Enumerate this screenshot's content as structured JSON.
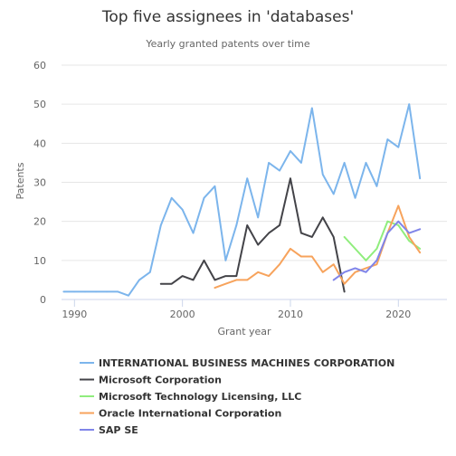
{
  "chart_data": {
    "type": "line",
    "title": "Top five assignees in 'databases'",
    "subtitle": "Yearly granted patents over time",
    "xlabel": "Grant year",
    "ylabel": "Patents",
    "xlim": [
      1988.8,
      2024.5
    ],
    "ylim": [
      0,
      60
    ],
    "x_ticks": [
      1990,
      2000,
      2010,
      2020
    ],
    "y_ticks": [
      0,
      10,
      20,
      30,
      40,
      50,
      60
    ],
    "grid": "horizontal",
    "legend_position": "bottom",
    "series": [
      {
        "name": "INTERNATIONAL BUSINESS MACHINES CORPORATION",
        "color": "#7cb5ec",
        "points": [
          [
            1989,
            2
          ],
          [
            1990,
            2
          ],
          [
            1991,
            2
          ],
          [
            1992,
            2
          ],
          [
            1993,
            2
          ],
          [
            1994,
            2
          ],
          [
            1995,
            1
          ],
          [
            1996,
            5
          ],
          [
            1997,
            7
          ],
          [
            1998,
            19
          ],
          [
            1999,
            26
          ],
          [
            2000,
            23
          ],
          [
            2001,
            17
          ],
          [
            2002,
            26
          ],
          [
            2003,
            29
          ],
          [
            2004,
            10
          ],
          [
            2005,
            19
          ],
          [
            2006,
            31
          ],
          [
            2007,
            21
          ],
          [
            2008,
            35
          ],
          [
            2009,
            33
          ],
          [
            2010,
            38
          ],
          [
            2011,
            35
          ],
          [
            2012,
            49
          ],
          [
            2013,
            32
          ],
          [
            2014,
            27
          ],
          [
            2015,
            35
          ],
          [
            2016,
            26
          ],
          [
            2017,
            35
          ],
          [
            2018,
            29
          ],
          [
            2019,
            41
          ],
          [
            2020,
            39
          ],
          [
            2021,
            50
          ],
          [
            2022,
            31
          ]
        ]
      },
      {
        "name": "Microsoft Corporation",
        "color": "#434348",
        "points": [
          [
            1998,
            4
          ],
          [
            1999,
            4
          ],
          [
            2000,
            6
          ],
          [
            2001,
            5
          ],
          [
            2002,
            10
          ],
          [
            2003,
            5
          ],
          [
            2004,
            6
          ],
          [
            2005,
            6
          ],
          [
            2006,
            19
          ],
          [
            2007,
            14
          ],
          [
            2008,
            17
          ],
          [
            2009,
            19
          ],
          [
            2010,
            31
          ],
          [
            2011,
            17
          ],
          [
            2012,
            16
          ],
          [
            2013,
            21
          ],
          [
            2014,
            16
          ],
          [
            2015,
            2
          ]
        ]
      },
      {
        "name": "Microsoft Technology Licensing, LLC",
        "color": "#90ed7d",
        "points": [
          [
            2015,
            16
          ],
          [
            2016,
            13
          ],
          [
            2017,
            10
          ],
          [
            2018,
            13
          ],
          [
            2019,
            20
          ],
          [
            2020,
            19
          ],
          [
            2021,
            15
          ],
          [
            2022,
            13
          ]
        ]
      },
      {
        "name": "Oracle International Corporation",
        "color": "#f7a35c",
        "points": [
          [
            2003,
            3
          ],
          [
            2004,
            4
          ],
          [
            2005,
            5
          ],
          [
            2006,
            5
          ],
          [
            2007,
            7
          ],
          [
            2008,
            6
          ],
          [
            2009,
            9
          ],
          [
            2010,
            13
          ],
          [
            2011,
            11
          ],
          [
            2012,
            11
          ],
          [
            2013,
            7
          ],
          [
            2014,
            9
          ],
          [
            2015,
            4
          ],
          [
            2016,
            7
          ],
          [
            2017,
            8
          ],
          [
            2018,
            9
          ],
          [
            2019,
            17
          ],
          [
            2020,
            24
          ],
          [
            2021,
            16
          ],
          [
            2022,
            12
          ]
        ]
      },
      {
        "name": "SAP SE",
        "color": "#8085e9",
        "points": [
          [
            2014,
            5
          ],
          [
            2015,
            7
          ],
          [
            2016,
            8
          ],
          [
            2017,
            7
          ],
          [
            2018,
            10
          ],
          [
            2019,
            17
          ],
          [
            2020,
            20
          ],
          [
            2021,
            17
          ],
          [
            2022,
            18
          ]
        ]
      }
    ]
  }
}
